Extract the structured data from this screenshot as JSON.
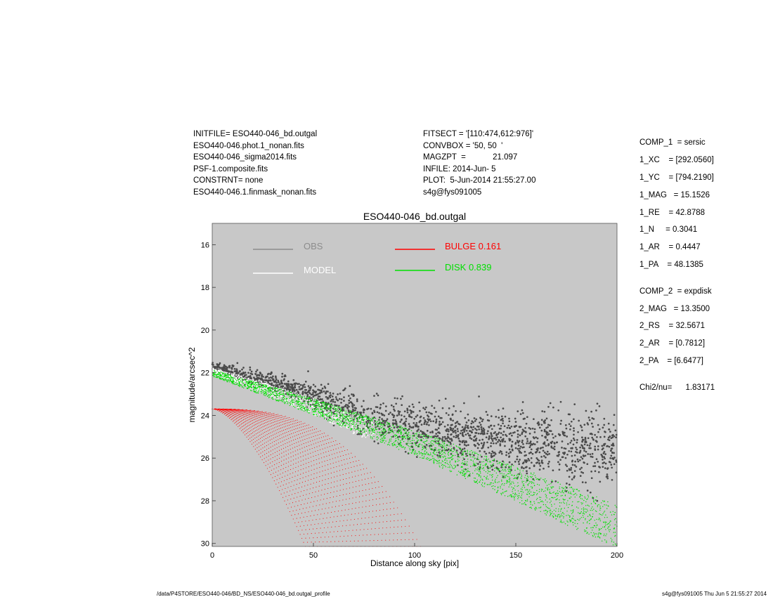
{
  "header_left": [
    "INITFILE= ESO440-046_bd.outgal",
    "ESO440-046.phot.1_nonan.fits",
    "ESO440-046_sigma2014.fits",
    "PSF-1.composite.fits",
    "CONSTRNT= none",
    "ESO440-046.1.finmask_nonan.fits"
  ],
  "header_mid": [
    "FITSECT = '[110:474,612:976]'",
    "CONVBOX = '50, 50  '",
    "MAGZPT  =            21.097",
    "INFILE: 2014-Jun- 5",
    "PLOT:  5-Jun-2014 21:55:27.00",
    "s4g@fys091005"
  ],
  "components": {
    "comp1": [
      "COMP_1  = sersic",
      "1_XC    = [292.0560]",
      "1_YC    = [794.2190]",
      "1_MAG   = 15.1526",
      "1_RE    = 42.8788",
      "1_N     = 0.3041",
      "1_AR    = 0.4447",
      "1_PA    = 48.1385"
    ],
    "comp2": [
      "COMP_2  = expdisk",
      "2_MAG   = 13.3500",
      "2_RS    = 32.5671",
      "2_AR    = [0.7812]",
      "2_PA    = [6.6477]"
    ],
    "chi": "Chi2/nu=      1.83171"
  },
  "footer": {
    "left": "/data/P4STORE/ESO440-046/BD_NS/ESO440-046_bd.outgal_profile",
    "right": "s4g@fys091005  Thu Jun  5 21:55:27 2014"
  },
  "colors": {
    "plot_bg": "#c8c8c8",
    "obs": "#4a4a4a",
    "obs_legend": "#8c8c8c",
    "model": "#ffffff",
    "bulge": "#ff0000",
    "disk": "#00e000"
  },
  "chart_data": {
    "type": "scatter",
    "title": "ESO440-046_bd.outgal",
    "xlabel": "Distance along sky [pix]",
    "ylabel": "magnitude/arcsec^2",
    "xlim": [
      0,
      200
    ],
    "ylim": [
      30,
      15
    ],
    "y_inverted": true,
    "xticks": [
      0,
      50,
      100,
      150,
      200
    ],
    "yticks": [
      16,
      18,
      20,
      22,
      24,
      26,
      28,
      30
    ],
    "legend": {
      "obs": "OBS",
      "model": "MODEL",
      "bulge": "BULGE  0.161",
      "disk": "DISK  0.839"
    },
    "series": [
      {
        "name": "OBS",
        "trend_x": [
          0,
          25,
          50,
          75,
          100,
          125,
          150,
          175,
          200
        ],
        "trend_y": [
          21.7,
          22.3,
          23.1,
          24.0,
          24.5,
          25.0,
          25.3,
          25.5,
          25.7
        ]
      },
      {
        "name": "MODEL",
        "trend_x": [
          0,
          25,
          50,
          75
        ],
        "trend_y": [
          21.9,
          22.7,
          23.6,
          24.6
        ]
      },
      {
        "name": "BULGE  0.161",
        "central_mag": 23.7,
        "outer_edge_x_at_mag30": 103,
        "inner_edge_x_at_mag30": 46
      },
      {
        "name": "DISK  0.839",
        "trend_x": [
          0,
          50,
          100,
          150,
          200
        ],
        "trend_y": [
          22.0,
          23.6,
          25.3,
          27.2,
          29.2
        ]
      }
    ]
  }
}
